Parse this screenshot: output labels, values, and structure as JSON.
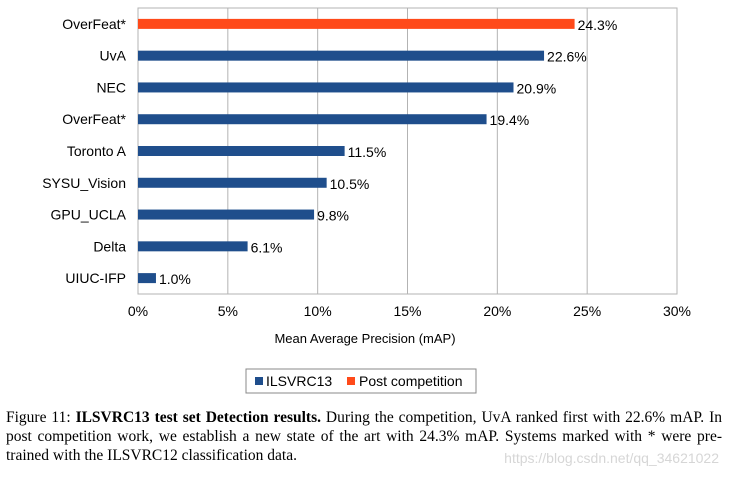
{
  "chart_data": {
    "type": "bar",
    "orientation": "horizontal",
    "xlabel": "Mean Average Precision (mAP)",
    "xlim": [
      0,
      30
    ],
    "xticks": [
      "0%",
      "5%",
      "10%",
      "15%",
      "20%",
      "25%",
      "30%"
    ],
    "grid": true,
    "legend": [
      {
        "name": "ILSVRC13",
        "color": "#1f4e8c"
      },
      {
        "name": "Post competition",
        "color": "#ff4a1a"
      }
    ],
    "bars": [
      {
        "label": "OverFeat*",
        "value": 24.3,
        "value_label": "24.3%",
        "series": "Post competition"
      },
      {
        "label": "UvA",
        "value": 22.6,
        "value_label": "22.6%",
        "series": "ILSVRC13"
      },
      {
        "label": "NEC",
        "value": 20.9,
        "value_label": "20.9%",
        "series": "ILSVRC13"
      },
      {
        "label": "OverFeat*",
        "value": 19.4,
        "value_label": "19.4%",
        "series": "ILSVRC13"
      },
      {
        "label": "Toronto A",
        "value": 11.5,
        "value_label": "11.5%",
        "series": "ILSVRC13"
      },
      {
        "label": "SYSU_Vision",
        "value": 10.5,
        "value_label": "10.5%",
        "series": "ILSVRC13"
      },
      {
        "label": "GPU_UCLA",
        "value": 9.8,
        "value_label": "9.8%",
        "series": "ILSVRC13"
      },
      {
        "label": "Delta",
        "value": 6.1,
        "value_label": "6.1%",
        "series": "ILSVRC13"
      },
      {
        "label": "UIUC-IFP",
        "value": 1.0,
        "value_label": "1.0%",
        "series": "ILSVRC13"
      }
    ]
  },
  "caption": {
    "prefix": "Figure 11: ",
    "bold": "ILSVRC13 test set Detection results.",
    "text": " During the competition, UvA ranked first with 22.6% mAP. In post competition work, we establish a new state of the art with 24.3% mAP. Systems marked with * were pre-trained with the ILSVRC12 classification data."
  },
  "watermark": "https://blog.csdn.net/qq_34621022"
}
